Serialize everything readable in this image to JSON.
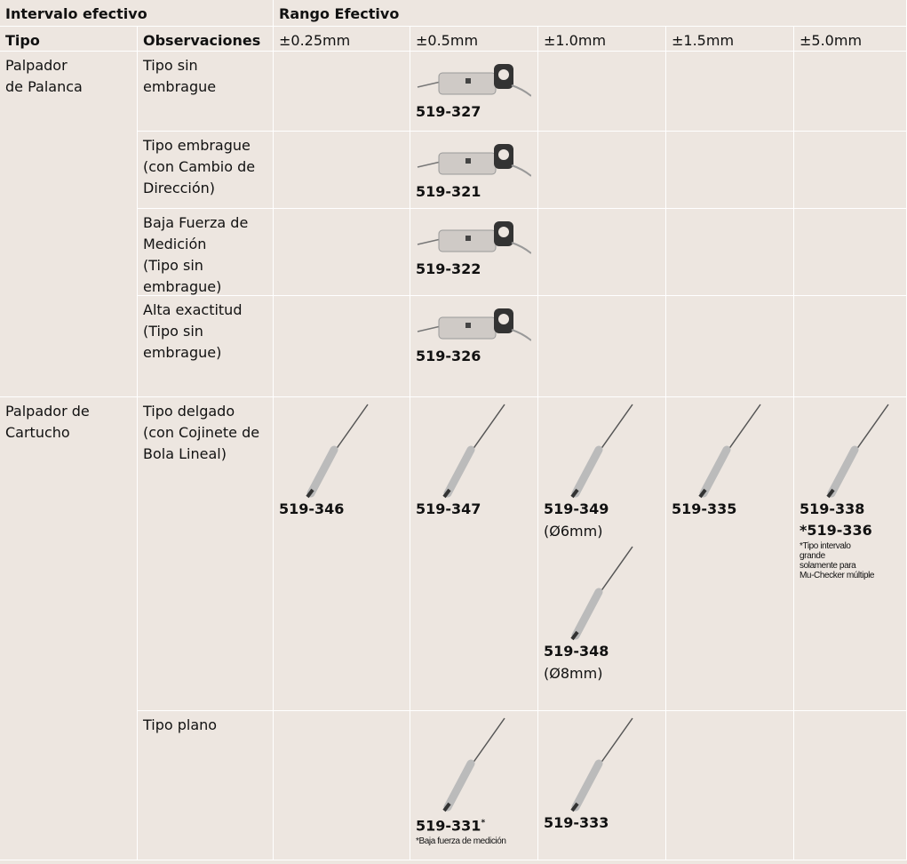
{
  "header": {
    "interval": "Intervalo efectivo",
    "range": "Rango Efectivo"
  },
  "columns": [
    "Tipo",
    "Observaciones",
    "±0.25mm",
    "±0.5mm",
    "±1.0mm",
    "±1.5mm",
    "±5.0mm"
  ],
  "groups": [
    {
      "type": "Palpador\nde Palanca",
      "rows": [
        {
          "remark": "Tipo sin\nembrague",
          "cells": [
            null,
            [
              {
                "models": [
                  {
                    "model": "519-327"
                  }
                ]
              }
            ],
            null,
            null,
            null
          ]
        },
        {
          "remark": "Tipo embrague\n(con Cambio de\nDirección)",
          "cells": [
            null,
            [
              {
                "models": [
                  {
                    "model": "519-321"
                  }
                ]
              }
            ],
            null,
            null,
            null
          ]
        },
        {
          "remark": "Baja Fuerza de\nMedición\n(Tipo sin\nembrague)",
          "cells": [
            null,
            [
              {
                "models": [
                  {
                    "model": "519-322"
                  }
                ]
              }
            ],
            null,
            null,
            null
          ]
        },
        {
          "remark": "Alta exactitud\n(Tipo sin\nembrague)",
          "cells": [
            null,
            [
              {
                "models": [
                  {
                    "model": "519-326"
                  }
                ]
              }
            ],
            null,
            null,
            null
          ]
        }
      ]
    },
    {
      "type": "Palpador de\nCartucho",
      "rows": [
        {
          "remark": "Tipo delgado\n(con Cojinete de\nBola Lineal)",
          "cells": [
            [
              {
                "models": [
                  {
                    "model": "519-346"
                  }
                ]
              }
            ],
            [
              {
                "models": [
                  {
                    "model": "519-347"
                  }
                ]
              }
            ],
            [
              {
                "models": [
                  {
                    "model": "519-349",
                    "detail": "(Ø6mm)"
                  }
                ]
              },
              {
                "models": [
                  {
                    "model": "519-348",
                    "detail": "(Ø8mm)"
                  }
                ]
              }
            ],
            [
              {
                "models": [
                  {
                    "model": "519-335"
                  }
                ]
              }
            ],
            [
              {
                "models": [
                  {
                    "model": "519-338"
                  },
                  {
                    "model": "*519-336"
                  }
                ],
                "note": "*Tipo intervalo\ngrande\nsolamente para\nMu-Checker múltiple"
              }
            ]
          ]
        },
        {
          "remark": "Tipo plano",
          "cells": [
            null,
            [
              {
                "models": [
                  {
                    "model": "519-331",
                    "mark": "*"
                  }
                ],
                "note": "*Baja fuerza de medición"
              }
            ],
            [
              {
                "models": [
                  {
                    "model": "519-333"
                  }
                ]
              }
            ],
            null,
            null
          ]
        }
      ]
    }
  ]
}
